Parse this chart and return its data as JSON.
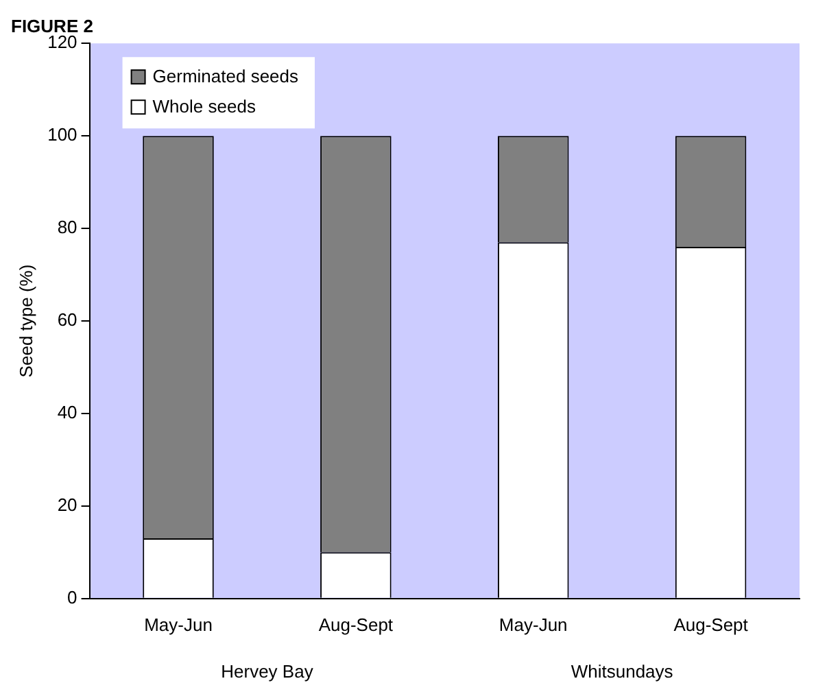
{
  "chart_data": {
    "type": "bar",
    "title": "FIGURE 2",
    "ylabel": "Seed type (%)",
    "categories": [
      "May-Jun",
      "Aug-Sept",
      "May-Jun",
      "Aug-Sept"
    ],
    "series": [
      {
        "name": "Whole seeds",
        "color": "#ffffff",
        "values": [
          13,
          10,
          77,
          76
        ]
      },
      {
        "name": "Germinated seeds",
        "color": "#808080",
        "values": [
          87,
          90,
          23,
          24
        ]
      }
    ],
    "stacked": true,
    "ylim": [
      0,
      120
    ],
    "yticks": [
      0,
      20,
      40,
      60,
      80,
      100,
      120
    ],
    "grid": false,
    "legend": "top left",
    "annotations": [
      "Hervey Bay",
      "Whitsundays"
    ]
  }
}
